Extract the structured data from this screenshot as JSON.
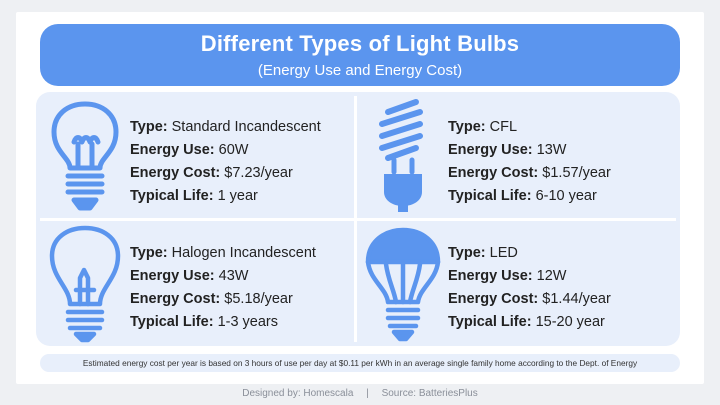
{
  "header": {
    "title": "Different Types of Light Bulbs",
    "subtitle": "(Energy Use and Energy Cost)"
  },
  "labels": {
    "type": "Type:",
    "energy_use": "Energy Use:",
    "energy_cost": "Energy Cost:",
    "typical_life": "Typical Life:"
  },
  "bulbs": [
    {
      "icon": "incandescent-bulb-icon",
      "type": "Standard Incandescent",
      "energy_use": "60W",
      "energy_cost": "$7.23/year",
      "typical_life": "1 year"
    },
    {
      "icon": "cfl-bulb-icon",
      "type": "CFL",
      "energy_use": "13W",
      "energy_cost": "$1.57/year",
      "typical_life": "6-10 year"
    },
    {
      "icon": "halogen-bulb-icon",
      "type": "Halogen Incandescent",
      "energy_use": "43W",
      "energy_cost": "$5.18/year",
      "typical_life": "1-3 years"
    },
    {
      "icon": "led-bulb-icon",
      "type": "LED",
      "energy_use": "12W",
      "energy_cost": "$1.44/year",
      "typical_life": "15-20 year"
    }
  ],
  "note": "Estimated energy cost per year is based on 3 hours of use per day at $0.11 per kWh in an average single family home according to the Dept. of Energy",
  "footer": {
    "designed_by": "Designed by: Homescala",
    "separator": "|",
    "source": "Source:  BatteriesPlus"
  },
  "colors": {
    "accent": "#5b95ee",
    "panel": "#e8effb",
    "icon_stroke": "#5b95ee"
  }
}
